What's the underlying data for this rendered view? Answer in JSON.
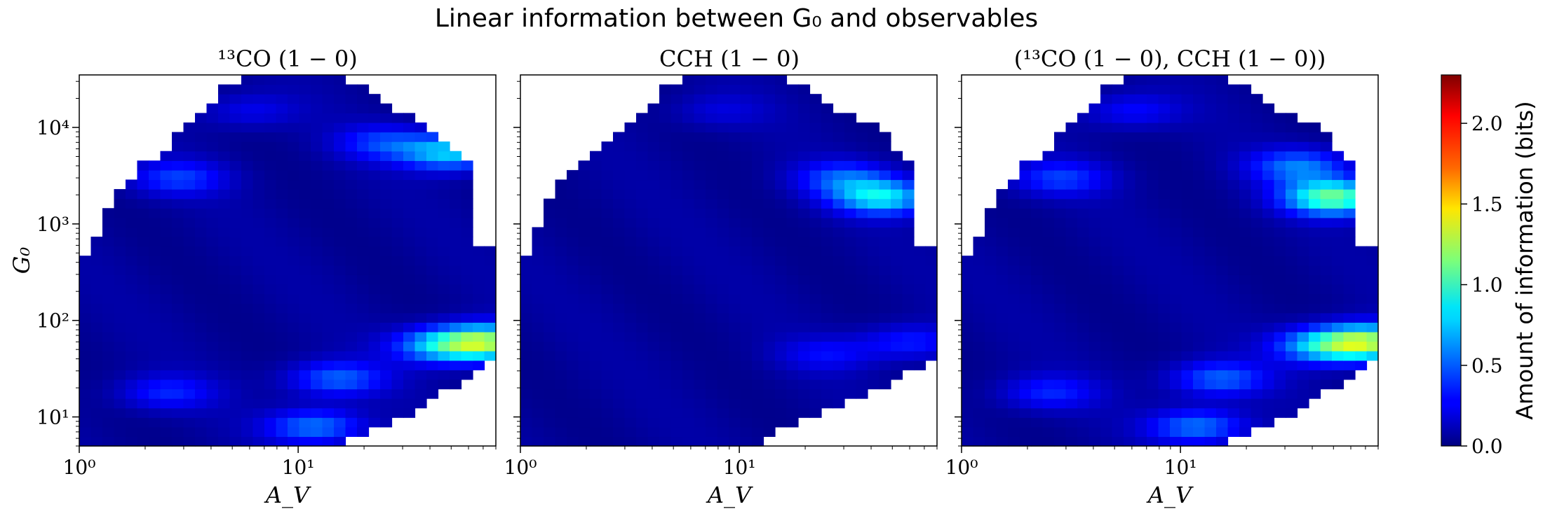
{
  "figure": {
    "suptitle": "Linear information between G₀ and observables"
  },
  "colorbar": {
    "label": "Amount of information (bits)",
    "ticks": [
      "0.0",
      "0.5",
      "1.0",
      "1.5",
      "2.0"
    ],
    "tick_values": [
      0.0,
      0.5,
      1.0,
      1.5,
      2.0
    ],
    "vmin": 0.0,
    "vmax": 2.3,
    "colormap": "jet"
  },
  "chart_data": [
    {
      "type": "heatmap",
      "title": "¹³CO (1 − 0)",
      "xlabel": "A_V",
      "ylabel": "G₀",
      "xscale": "log",
      "yscale": "log",
      "xlim": [
        1,
        80
      ],
      "ylim": [
        5,
        35000
      ],
      "xticks": [
        {
          "value": 1,
          "label": "10⁰"
        },
        {
          "value": 10,
          "label": "10¹"
        }
      ],
      "yticks": [
        {
          "value": 10,
          "label": "10¹"
        },
        {
          "value": 100,
          "label": "10²"
        },
        {
          "value": 1000,
          "label": "10³"
        },
        {
          "value": 10000,
          "label": "10⁴"
        }
      ],
      "hotspots": [
        {
          "av": 72,
          "g0": 60,
          "value": 1.05
        },
        {
          "av": 45,
          "g0": 55,
          "value": 0.6
        },
        {
          "av": 15,
          "g0": 25,
          "value": 0.45
        },
        {
          "av": 12,
          "g0": 8,
          "value": 0.5
        },
        {
          "av": 2.5,
          "g0": 18,
          "value": 0.3
        },
        {
          "av": 50,
          "g0": 5500,
          "value": 0.7
        },
        {
          "av": 25,
          "g0": 7000,
          "value": 0.35
        },
        {
          "av": 2.8,
          "g0": 3000,
          "value": 0.35
        },
        {
          "av": 6,
          "g0": 15000,
          "value": 0.2
        }
      ]
    },
    {
      "type": "heatmap",
      "title": "CCH (1 − 0)",
      "xlabel": "A_V",
      "ylabel": "",
      "xscale": "log",
      "yscale": "log",
      "xlim": [
        1,
        80
      ],
      "ylim": [
        5,
        35000
      ],
      "xticks": [
        {
          "value": 1,
          "label": "10⁰"
        },
        {
          "value": 10,
          "label": "10¹"
        }
      ],
      "yticks": [],
      "hotspots": [
        {
          "av": 45,
          "g0": 1900,
          "value": 0.75
        },
        {
          "av": 30,
          "g0": 3000,
          "value": 0.4
        },
        {
          "av": 60,
          "g0": 60,
          "value": 0.3
        },
        {
          "av": 25,
          "g0": 45,
          "value": 0.22
        },
        {
          "av": 8,
          "g0": 15000,
          "value": 0.15
        }
      ]
    },
    {
      "type": "heatmap",
      "title": "(¹³CO (1 − 0), CCH (1 − 0))",
      "xlabel": "A_V",
      "ylabel": "",
      "xscale": "log",
      "yscale": "log",
      "xlim": [
        1,
        80
      ],
      "ylim": [
        5,
        35000
      ],
      "xticks": [
        {
          "value": 1,
          "label": "10⁰"
        },
        {
          "value": 10,
          "label": "10¹"
        }
      ],
      "yticks": [],
      "hotspots": [
        {
          "av": 72,
          "g0": 60,
          "value": 1.05
        },
        {
          "av": 45,
          "g0": 55,
          "value": 0.65
        },
        {
          "av": 15,
          "g0": 25,
          "value": 0.45
        },
        {
          "av": 12,
          "g0": 8,
          "value": 0.5
        },
        {
          "av": 2.5,
          "g0": 18,
          "value": 0.3
        },
        {
          "av": 50,
          "g0": 1900,
          "value": 1.05
        },
        {
          "av": 35,
          "g0": 4000,
          "value": 0.5
        },
        {
          "av": 2.8,
          "g0": 3000,
          "value": 0.35
        },
        {
          "av": 6,
          "g0": 15000,
          "value": 0.25
        }
      ]
    }
  ]
}
